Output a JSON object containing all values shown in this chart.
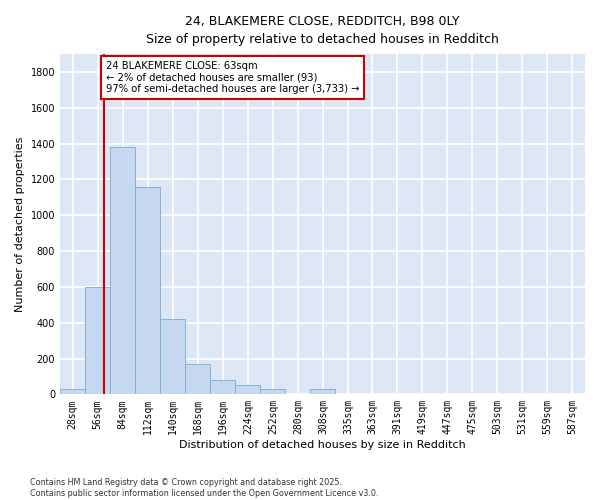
{
  "title_line1": "24, BLAKEMERE CLOSE, REDDITCH, B98 0LY",
  "title_line2": "Size of property relative to detached houses in Redditch",
  "xlabel": "Distribution of detached houses by size in Redditch",
  "ylabel": "Number of detached properties",
  "bar_color": "#c5d8f0",
  "bar_edge_color": "#7aaad4",
  "background_color": "#dce6f5",
  "grid_color": "#ffffff",
  "annotation_box_color": "#cc0000",
  "annotation_line_color": "#cc0000",
  "annotation_text": "24 BLAKEMERE CLOSE: 63sqm\n← 2% of detached houses are smaller (93)\n97% of semi-detached houses are larger (3,733) →",
  "property_size": 63,
  "categories": [
    "28sqm",
    "56sqm",
    "84sqm",
    "112sqm",
    "140sqm",
    "168sqm",
    "196sqm",
    "224sqm",
    "252sqm",
    "280sqm",
    "308sqm",
    "335sqm",
    "363sqm",
    "391sqm",
    "419sqm",
    "447sqm",
    "475sqm",
    "503sqm",
    "531sqm",
    "559sqm",
    "587sqm"
  ],
  "bin_left_edges": [
    14,
    42,
    70,
    98,
    126,
    154,
    182,
    210,
    238,
    266,
    294,
    322,
    349,
    377,
    405,
    433,
    461,
    489,
    517,
    545,
    573
  ],
  "bin_width": 28,
  "bar_heights": [
    30,
    600,
    1380,
    1160,
    420,
    170,
    80,
    50,
    30,
    0,
    30,
    0,
    0,
    0,
    0,
    0,
    0,
    0,
    0,
    0,
    0
  ],
  "xlim": [
    14,
    601
  ],
  "ylim": [
    0,
    1900
  ],
  "yticks": [
    0,
    200,
    400,
    600,
    800,
    1000,
    1200,
    1400,
    1600,
    1800
  ],
  "ylabel_fontsize": 8,
  "xlabel_fontsize": 8,
  "tick_fontsize": 7,
  "title_fontsize1": 9,
  "title_fontsize2": 8.5,
  "footer_text": "Contains HM Land Registry data © Crown copyright and database right 2025.\nContains public sector information licensed under the Open Government Licence v3.0."
}
